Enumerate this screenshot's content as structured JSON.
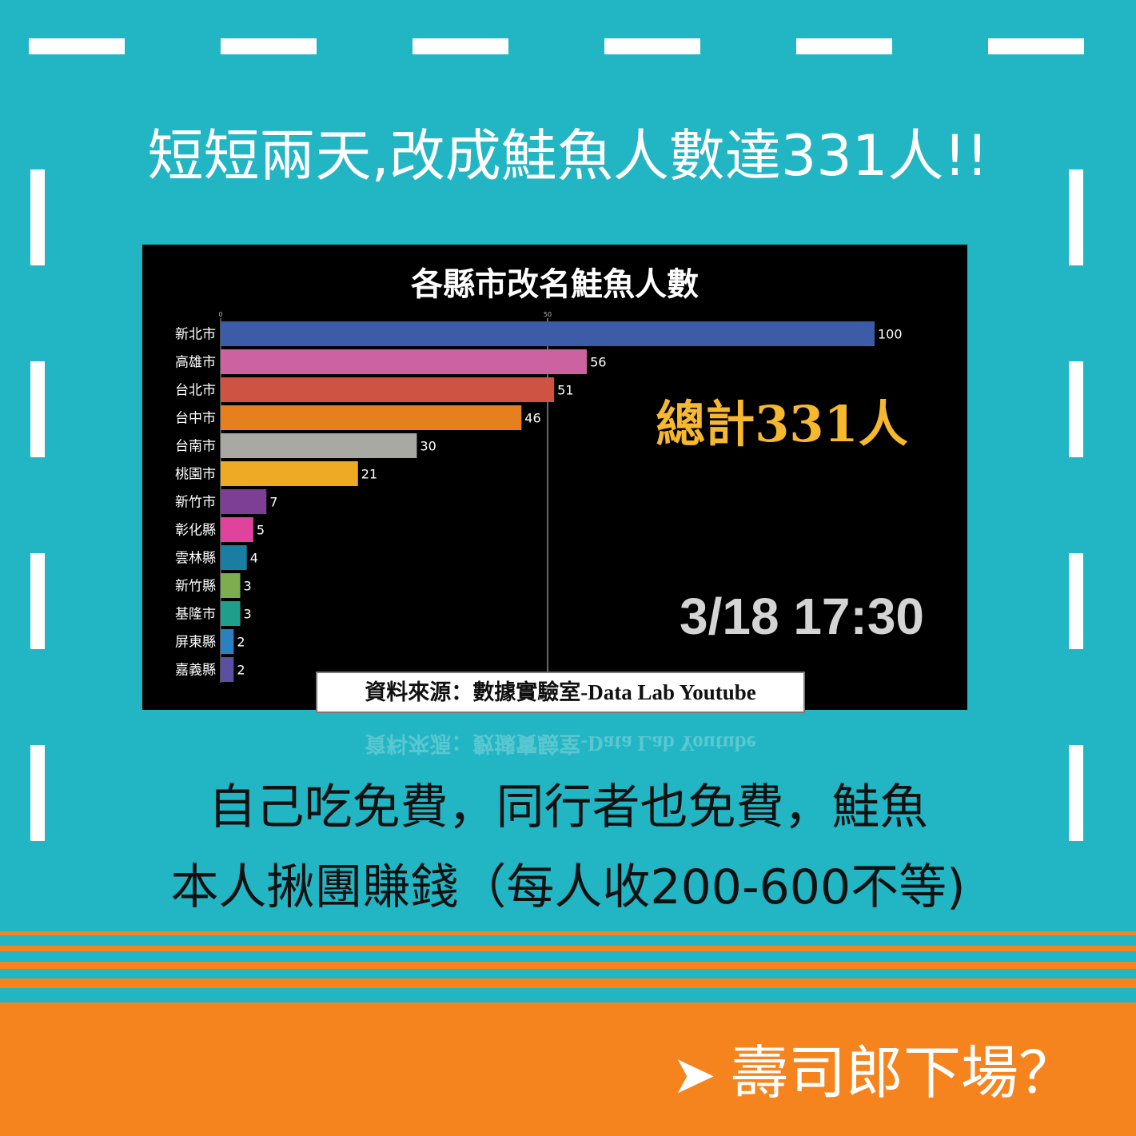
{
  "headline": "短短兩天,改成鮭魚人數達331人!!",
  "chart_data": {
    "type": "bar",
    "orientation": "horizontal",
    "title": "各縣市改名鮭魚人數",
    "categories": [
      "新北市",
      "高雄市",
      "台北市",
      "台中市",
      "台南市",
      "桃園市",
      "新竹市",
      "彰化縣",
      "雲林縣",
      "新竹縣",
      "基隆市",
      "屏東縣",
      "嘉義縣"
    ],
    "values": [
      100,
      56,
      51,
      46,
      30,
      21,
      7,
      5,
      4,
      3,
      3,
      2,
      2
    ],
    "colors": [
      "#3c5ca8",
      "#cc63a0",
      "#cf5342",
      "#e6801f",
      "#a9a9a4",
      "#eeaa24",
      "#7d3f96",
      "#e0439e",
      "#1a7ea2",
      "#7cae4f",
      "#1e9e8b",
      "#2b80bf",
      "#5a4fa0"
    ],
    "x_ticks": [
      "0",
      "50"
    ],
    "xlim": [
      0,
      100
    ],
    "gridline_at": 50,
    "grid": false,
    "background": "#000000"
  },
  "overlay": {
    "total": "總計331人",
    "timestamp": "3/18 17:30",
    "source": "資料來源：數據實驗室-Data Lab Youtube"
  },
  "caption": {
    "line1": "自己吃免費，同行者也免費，鮭魚",
    "line2": "本人揪團賺錢（每人收200-600不等)"
  },
  "footer": {
    "arrow_icon": "➤",
    "text": "壽司郎下場？"
  },
  "colors": {
    "background": "#22b5c3",
    "accent_orange": "#f5841e",
    "total_gold": "#f5b82e",
    "dash_white": "#ffffff"
  }
}
